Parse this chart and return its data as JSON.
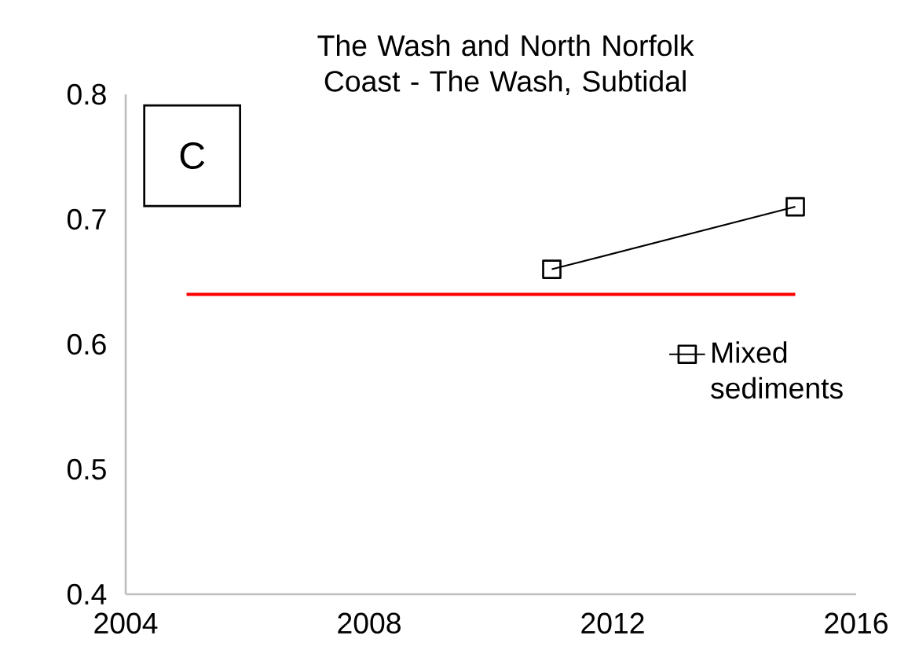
{
  "chart_data": {
    "type": "line",
    "title": "The Wash and North Norfolk Coast - The Wash, Subtidal",
    "annotations": [
      "C"
    ],
    "xlim": [
      2004,
      2016
    ],
    "xticks": [
      2004,
      2008,
      2012,
      2016
    ],
    "ylim": [
      0.4,
      0.8
    ],
    "yticks": [
      0.4,
      0.5,
      0.6,
      0.7,
      0.8
    ],
    "legend": "right",
    "series": [
      {
        "color": "#ff0000",
        "marker": "none",
        "x": [
          2005,
          2015
        ],
        "values": [
          0.64,
          0.64
        ]
      },
      {
        "name": "Mixed sediments",
        "color": "#000000",
        "marker": "square",
        "x": [
          2011,
          2015
        ],
        "values": [
          0.66,
          0.71
        ]
      }
    ]
  }
}
